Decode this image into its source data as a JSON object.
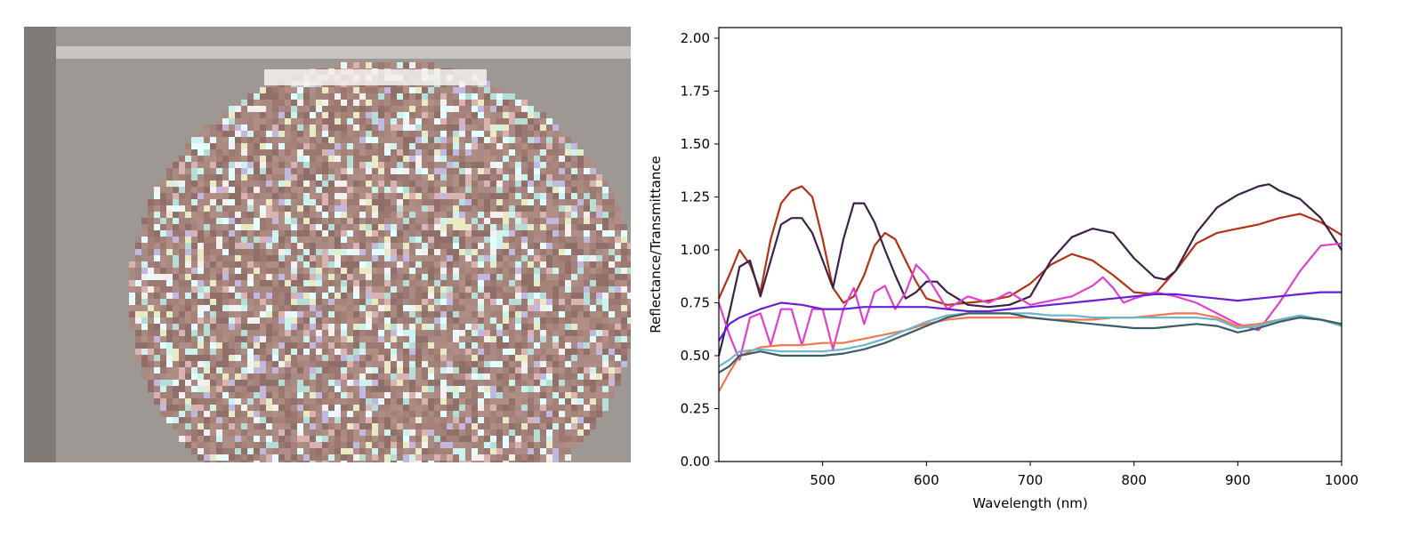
{
  "photo": {
    "subject": "sample-disc",
    "background_color": "#9d9893",
    "border_color": "#c7c4c1",
    "disc_color": "#a4827a",
    "sparkle_colors": [
      "#cdf3ef",
      "#e3ffff",
      "#b6ddd6",
      "#f3f0ef",
      "#c1b7df",
      "#e7eac3",
      "#d9b3b1"
    ]
  },
  "chart_data": {
    "type": "line",
    "title": "",
    "xlabel": "Wavelength (nm)",
    "ylabel": "Reflectance/Transmittance",
    "xlim": [
      400,
      1000
    ],
    "ylim": [
      0,
      2.05
    ],
    "xticks": [
      500,
      600,
      700,
      800,
      900,
      1000
    ],
    "yticks": [
      "0.00",
      "0.25",
      "0.50",
      "0.75",
      "1.00",
      "1.25",
      "1.50",
      "1.75",
      "2.00"
    ],
    "grid": false,
    "legend": "none",
    "series": [
      {
        "color": "#b33214",
        "x": [
          400,
          410,
          420,
          430,
          440,
          450,
          460,
          470,
          480,
          490,
          500,
          510,
          520,
          530,
          540,
          550,
          560,
          570,
          580,
          590,
          600,
          620,
          640,
          660,
          680,
          700,
          720,
          740,
          760,
          780,
          800,
          820,
          840,
          860,
          880,
          900,
          920,
          940,
          960,
          980,
          1000
        ],
        "y": [
          0.77,
          0.88,
          1.0,
          0.93,
          0.8,
          1.05,
          1.22,
          1.28,
          1.3,
          1.25,
          1.05,
          0.82,
          0.75,
          0.78,
          0.88,
          1.02,
          1.08,
          1.05,
          0.95,
          0.85,
          0.77,
          0.74,
          0.75,
          0.76,
          0.78,
          0.84,
          0.93,
          0.98,
          0.95,
          0.88,
          0.8,
          0.79,
          0.9,
          1.03,
          1.08,
          1.1,
          1.12,
          1.15,
          1.17,
          1.13,
          1.07
        ]
      },
      {
        "color": "#3b2148",
        "x": [
          400,
          410,
          420,
          430,
          440,
          450,
          460,
          470,
          480,
          490,
          500,
          510,
          520,
          530,
          540,
          550,
          560,
          570,
          580,
          590,
          600,
          610,
          620,
          640,
          660,
          680,
          700,
          720,
          740,
          760,
          780,
          800,
          820,
          830,
          840,
          860,
          880,
          900,
          920,
          930,
          940,
          960,
          980,
          1000
        ],
        "y": [
          0.5,
          0.7,
          0.92,
          0.95,
          0.78,
          0.95,
          1.12,
          1.15,
          1.15,
          1.08,
          0.95,
          0.82,
          1.05,
          1.22,
          1.22,
          1.13,
          1.0,
          0.88,
          0.77,
          0.8,
          0.85,
          0.85,
          0.8,
          0.74,
          0.73,
          0.74,
          0.78,
          0.95,
          1.06,
          1.1,
          1.08,
          0.96,
          0.87,
          0.86,
          0.9,
          1.08,
          1.2,
          1.26,
          1.3,
          1.31,
          1.28,
          1.24,
          1.15,
          1.0
        ]
      },
      {
        "color": "#e040d0",
        "x": [
          400,
          410,
          420,
          430,
          440,
          450,
          460,
          470,
          480,
          490,
          500,
          510,
          520,
          530,
          540,
          550,
          560,
          570,
          580,
          590,
          600,
          610,
          620,
          640,
          660,
          680,
          700,
          720,
          740,
          760,
          770,
          780,
          790,
          800,
          820,
          840,
          860,
          880,
          900,
          920,
          940,
          960,
          980,
          1000
        ],
        "y": [
          0.75,
          0.6,
          0.48,
          0.68,
          0.7,
          0.55,
          0.72,
          0.72,
          0.55,
          0.72,
          0.72,
          0.53,
          0.72,
          0.82,
          0.65,
          0.8,
          0.83,
          0.72,
          0.8,
          0.93,
          0.88,
          0.8,
          0.72,
          0.78,
          0.75,
          0.8,
          0.74,
          0.76,
          0.78,
          0.83,
          0.87,
          0.82,
          0.75,
          0.77,
          0.8,
          0.78,
          0.75,
          0.7,
          0.65,
          0.62,
          0.75,
          0.9,
          1.02,
          1.03
        ]
      },
      {
        "color": "#6a1fd4",
        "x": [
          400,
          410,
          420,
          440,
          460,
          480,
          500,
          520,
          540,
          560,
          580,
          600,
          620,
          640,
          660,
          680,
          700,
          720,
          740,
          760,
          780,
          800,
          820,
          840,
          860,
          880,
          900,
          920,
          940,
          960,
          980,
          1000
        ],
        "y": [
          0.57,
          0.65,
          0.68,
          0.72,
          0.75,
          0.74,
          0.72,
          0.72,
          0.73,
          0.73,
          0.73,
          0.73,
          0.72,
          0.71,
          0.71,
          0.72,
          0.73,
          0.74,
          0.75,
          0.76,
          0.77,
          0.78,
          0.79,
          0.79,
          0.78,
          0.77,
          0.76,
          0.77,
          0.78,
          0.79,
          0.8,
          0.8
        ]
      },
      {
        "color": "#f07850",
        "x": [
          400,
          410,
          420,
          440,
          460,
          480,
          500,
          520,
          540,
          560,
          580,
          600,
          620,
          640,
          660,
          680,
          700,
          720,
          740,
          760,
          780,
          800,
          820,
          840,
          860,
          880,
          900,
          920,
          940,
          960,
          980,
          1000
        ],
        "y": [
          0.33,
          0.42,
          0.5,
          0.54,
          0.55,
          0.55,
          0.56,
          0.56,
          0.58,
          0.6,
          0.62,
          0.65,
          0.67,
          0.68,
          0.68,
          0.68,
          0.68,
          0.67,
          0.67,
          0.67,
          0.68,
          0.68,
          0.69,
          0.7,
          0.7,
          0.68,
          0.64,
          0.65,
          0.67,
          0.68,
          0.67,
          0.65
        ]
      },
      {
        "color": "#6ab4cc",
        "x": [
          400,
          410,
          420,
          440,
          460,
          480,
          500,
          520,
          540,
          560,
          580,
          600,
          620,
          640,
          660,
          680,
          700,
          720,
          740,
          760,
          780,
          800,
          820,
          840,
          860,
          880,
          900,
          920,
          940,
          960,
          980,
          1000
        ],
        "y": [
          0.45,
          0.48,
          0.52,
          0.53,
          0.52,
          0.52,
          0.52,
          0.53,
          0.55,
          0.58,
          0.62,
          0.66,
          0.69,
          0.7,
          0.7,
          0.7,
          0.7,
          0.69,
          0.69,
          0.68,
          0.68,
          0.68,
          0.68,
          0.68,
          0.68,
          0.67,
          0.63,
          0.64,
          0.67,
          0.69,
          0.67,
          0.64
        ]
      },
      {
        "color": "#3c5c68",
        "x": [
          400,
          410,
          420,
          440,
          460,
          480,
          500,
          520,
          540,
          560,
          580,
          600,
          620,
          640,
          660,
          680,
          700,
          720,
          740,
          760,
          780,
          800,
          820,
          840,
          860,
          880,
          900,
          920,
          940,
          960,
          980,
          1000
        ],
        "y": [
          0.42,
          0.45,
          0.5,
          0.52,
          0.5,
          0.5,
          0.5,
          0.51,
          0.53,
          0.56,
          0.6,
          0.64,
          0.68,
          0.7,
          0.7,
          0.7,
          0.68,
          0.67,
          0.66,
          0.65,
          0.64,
          0.63,
          0.63,
          0.64,
          0.65,
          0.64,
          0.61,
          0.63,
          0.66,
          0.68,
          0.67,
          0.65
        ]
      }
    ]
  }
}
